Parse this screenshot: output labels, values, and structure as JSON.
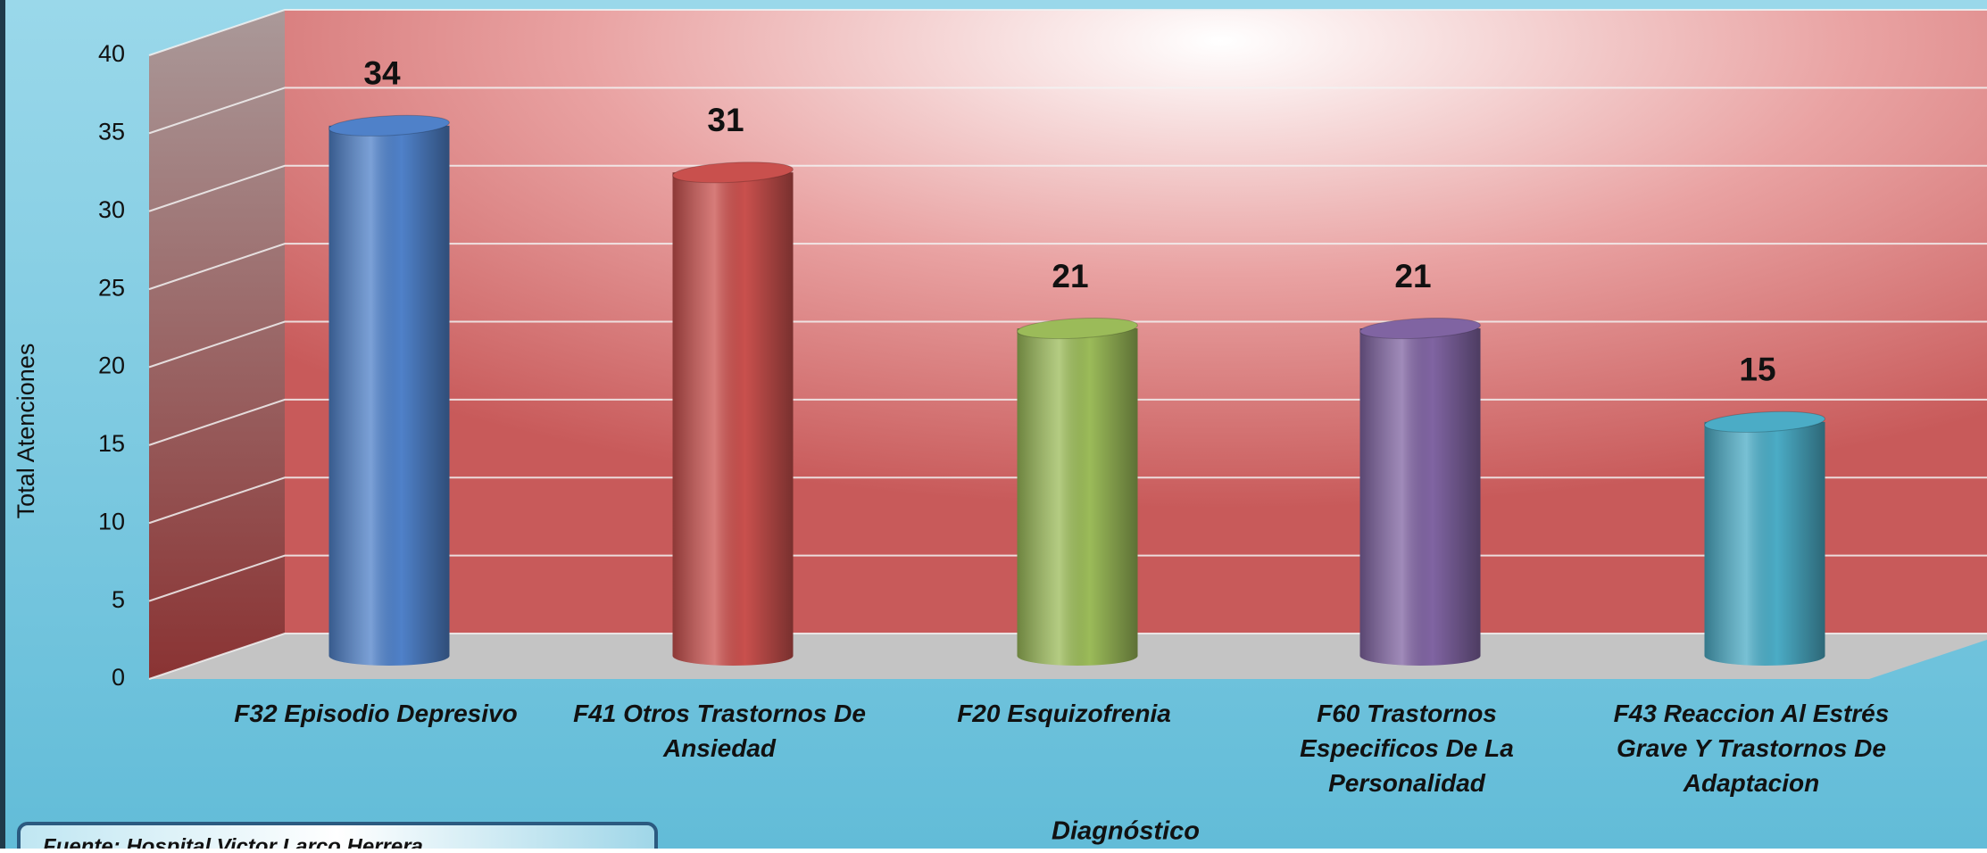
{
  "chart_data": {
    "type": "bar",
    "categories": [
      "F32 Episodio Depresivo",
      "F41 Otros Trastornos De Ansiedad",
      "F20 Esquizofrenia",
      "F60 Trastornos Especificos De La Personalidad",
      "F43 Reaccion Al Estrés Grave Y Trastornos De Adaptacion"
    ],
    "values": [
      34,
      31,
      21,
      21,
      15
    ],
    "colors": [
      "#4f81c9",
      "#c9504d",
      "#9bbb59",
      "#8064a2",
      "#4bacc6"
    ],
    "ylim": [
      0,
      40
    ],
    "yticks": [
      0,
      5,
      10,
      15,
      20,
      25,
      30,
      35,
      40
    ],
    "grid": true,
    "y_label": "Total Atenciones",
    "x_label": "Diagnóstico",
    "source": "Fuente: Hospital Victor Larco Herrera"
  }
}
